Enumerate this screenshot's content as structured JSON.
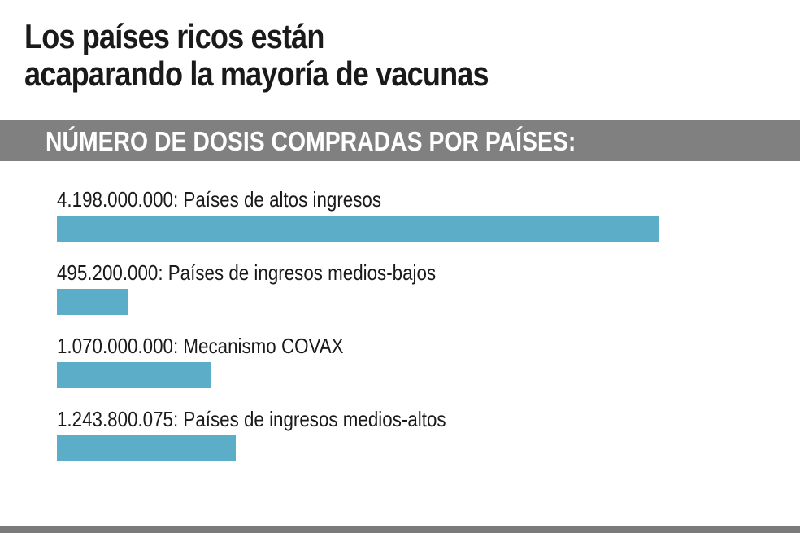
{
  "title_line1": "Los países ricos están",
  "title_line2": "acaparando la mayoría de vacunas",
  "section_header": "NÚMERO DE DOSIS COMPRADAS POR PAÍSES:",
  "colors": {
    "bar": "#5badc8",
    "band": "#808080",
    "text": "#1a1a1a"
  },
  "chart_data": {
    "type": "bar",
    "orientation": "horizontal",
    "title": "NÚMERO DE DOSIS COMPRADAS POR PAÍSES:",
    "categories": [
      "Países de altos ingresos",
      "Países de ingresos medios-bajos",
      "Mecanismo COVAX",
      "Países de ingresos medios-altos"
    ],
    "values": [
      4198000000,
      495200000,
      1070000000,
      1243800075
    ],
    "value_labels": [
      "4.198.000.000",
      "495.200.000",
      "1.070.000.000",
      "1.243.800.075"
    ],
    "labels": [
      "4.198.000.000: Países de altos ingresos",
      "495.200.000: Países de ingresos medios-bajos",
      "1.070.000.000: Mecanismo COVAX",
      "1.243.800.075: Países de ingresos medios-altos"
    ],
    "xlim": [
      0,
      4198000000
    ],
    "grid": false
  }
}
